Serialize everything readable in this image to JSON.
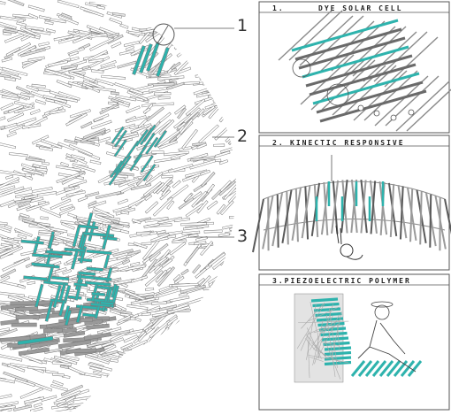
{
  "callouts": [
    {
      "number": "1"
    },
    {
      "number": "2"
    },
    {
      "number": "3"
    }
  ],
  "panels": [
    {
      "number": "1.",
      "title": "DYE SOLAR CELL"
    },
    {
      "number": "2.",
      "title": "KINECTIC RESPONSIVE"
    },
    {
      "number": "3.",
      "title": "3.PIEZOELECTRIC POLYMER"
    }
  ],
  "colors": {
    "accent_teal": "#2eb3ad",
    "line_gray": "#8a8a8a",
    "frame": "#555555",
    "background": "#ffffff"
  }
}
